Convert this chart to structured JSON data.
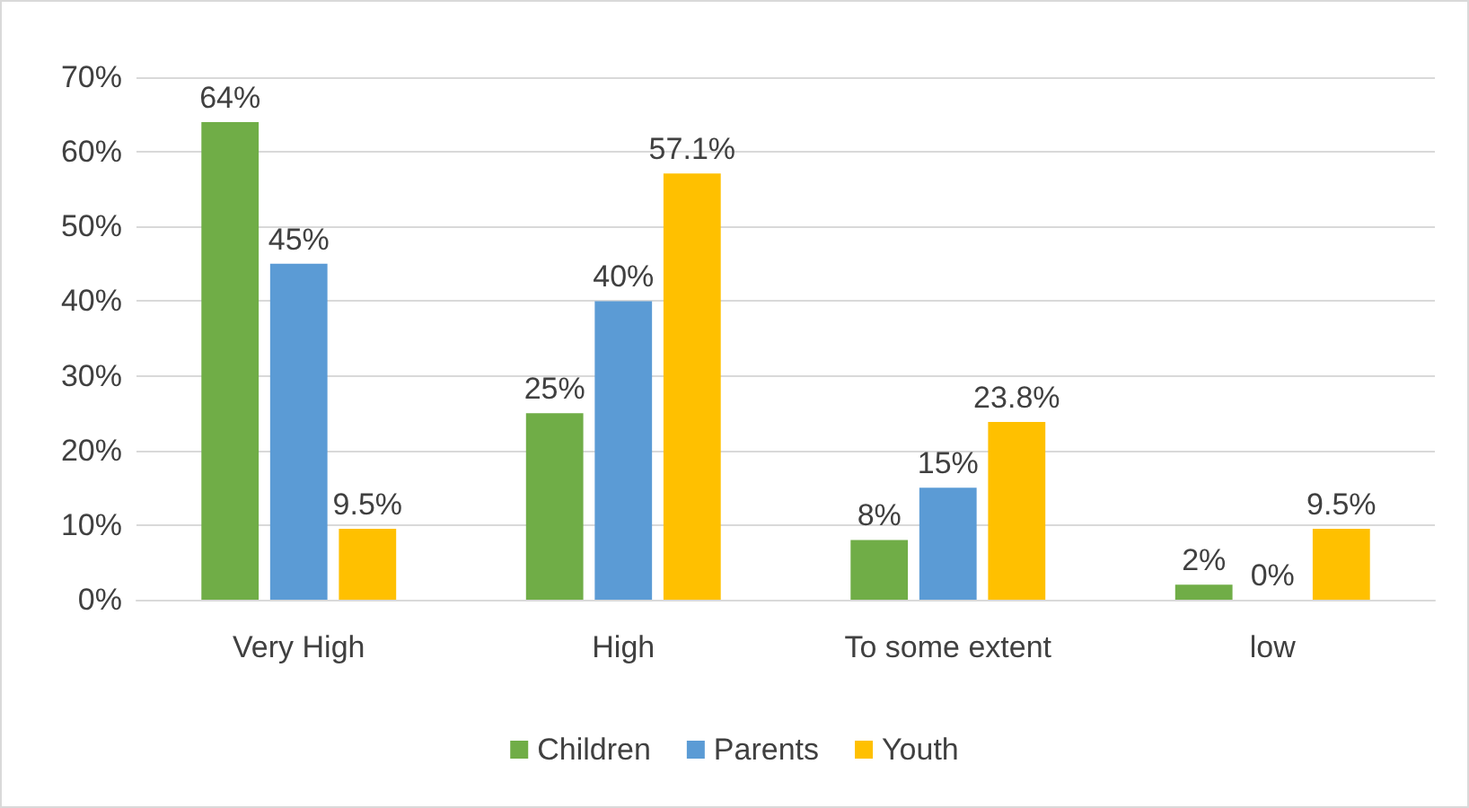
{
  "chart_data": {
    "type": "bar",
    "categories": [
      "Very High",
      "High",
      "To some extent",
      "low"
    ],
    "series": [
      {
        "name": "Children",
        "color": "#70ad47",
        "values": [
          64,
          25,
          8,
          2
        ],
        "value_labels": [
          "64%",
          "25%",
          "8%",
          "2%"
        ]
      },
      {
        "name": "Parents",
        "color": "#5b9bd5",
        "values": [
          45,
          40,
          15,
          0
        ],
        "value_labels": [
          "45%",
          "40%",
          "15%",
          "0%"
        ]
      },
      {
        "name": "Youth",
        "color": "#ffc000",
        "values": [
          9.5,
          57.1,
          23.8,
          9.5
        ],
        "value_labels": [
          "9.5%",
          "57.1%",
          "23.8%",
          "9.5%"
        ]
      }
    ],
    "ylim": [
      0,
      70
    ],
    "yticks": [
      {
        "value": 0,
        "label": "0%"
      },
      {
        "value": 10,
        "label": "10%"
      },
      {
        "value": 20,
        "label": "20%"
      },
      {
        "value": 30,
        "label": "30%"
      },
      {
        "value": 40,
        "label": "40%"
      },
      {
        "value": 50,
        "label": "50%"
      },
      {
        "value": 60,
        "label": "60%"
      },
      {
        "value": 70,
        "label": "70%"
      }
    ],
    "grid": "y",
    "legend": "bottom"
  }
}
